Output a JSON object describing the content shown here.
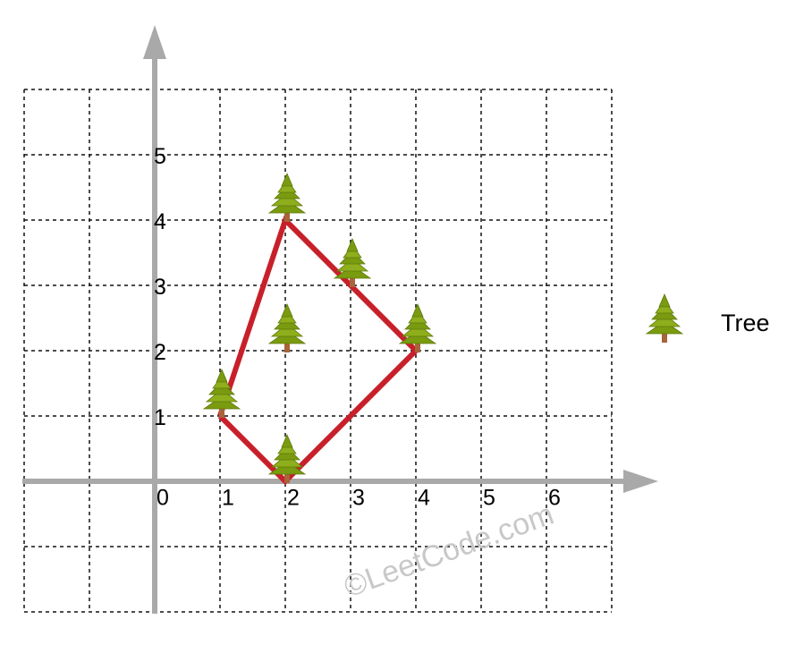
{
  "diagram": {
    "x_ticks": [
      "0",
      "1",
      "2",
      "3",
      "4",
      "5",
      "6"
    ],
    "y_ticks": [
      "1",
      "2",
      "3",
      "4",
      "5"
    ],
    "trees": [
      [
        1,
        1
      ],
      [
        2,
        0
      ],
      [
        4,
        2
      ],
      [
        3,
        3
      ],
      [
        2,
        4
      ],
      [
        2,
        2
      ]
    ],
    "fence": [
      [
        1,
        1
      ],
      [
        2,
        0
      ],
      [
        4,
        2
      ],
      [
        3,
        3
      ],
      [
        2,
        4
      ],
      [
        1,
        1
      ]
    ],
    "legend_label": "Tree",
    "watermark": "©LeetCode.com",
    "colors": {
      "fence": "#c8202a",
      "axis": "#a9a9a9",
      "grid": "#111111",
      "tree": "#7a9a10",
      "trunk": "#a8643a"
    }
  }
}
